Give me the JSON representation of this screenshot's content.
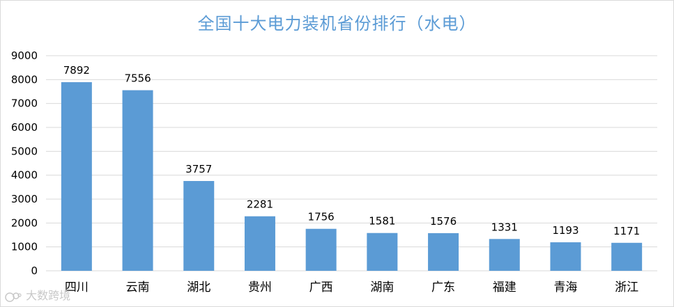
{
  "chart_data": {
    "type": "bar",
    "title": "全国十大电力装机省份排行（水电）",
    "categories": [
      "四川",
      "云南",
      "湖北",
      "贵州",
      "广西",
      "湖南",
      "广东",
      "福建",
      "青海",
      "浙江"
    ],
    "values": [
      7892,
      7556,
      3757,
      2281,
      1756,
      1581,
      1576,
      1331,
      1193,
      1171
    ],
    "ylim": [
      0,
      9000
    ],
    "yticks": [
      0,
      1000,
      2000,
      3000,
      4000,
      5000,
      6000,
      7000,
      8000,
      9000
    ],
    "xlabel": "",
    "ylabel": "",
    "grid": true,
    "legend": "none",
    "colors": {
      "bar": "#5b9bd5",
      "grid": "#d9d9d9",
      "title": "#5b9bd5"
    }
  },
  "watermark": {
    "text": "大数跨境",
    "icon": "camera-logo-icon"
  }
}
